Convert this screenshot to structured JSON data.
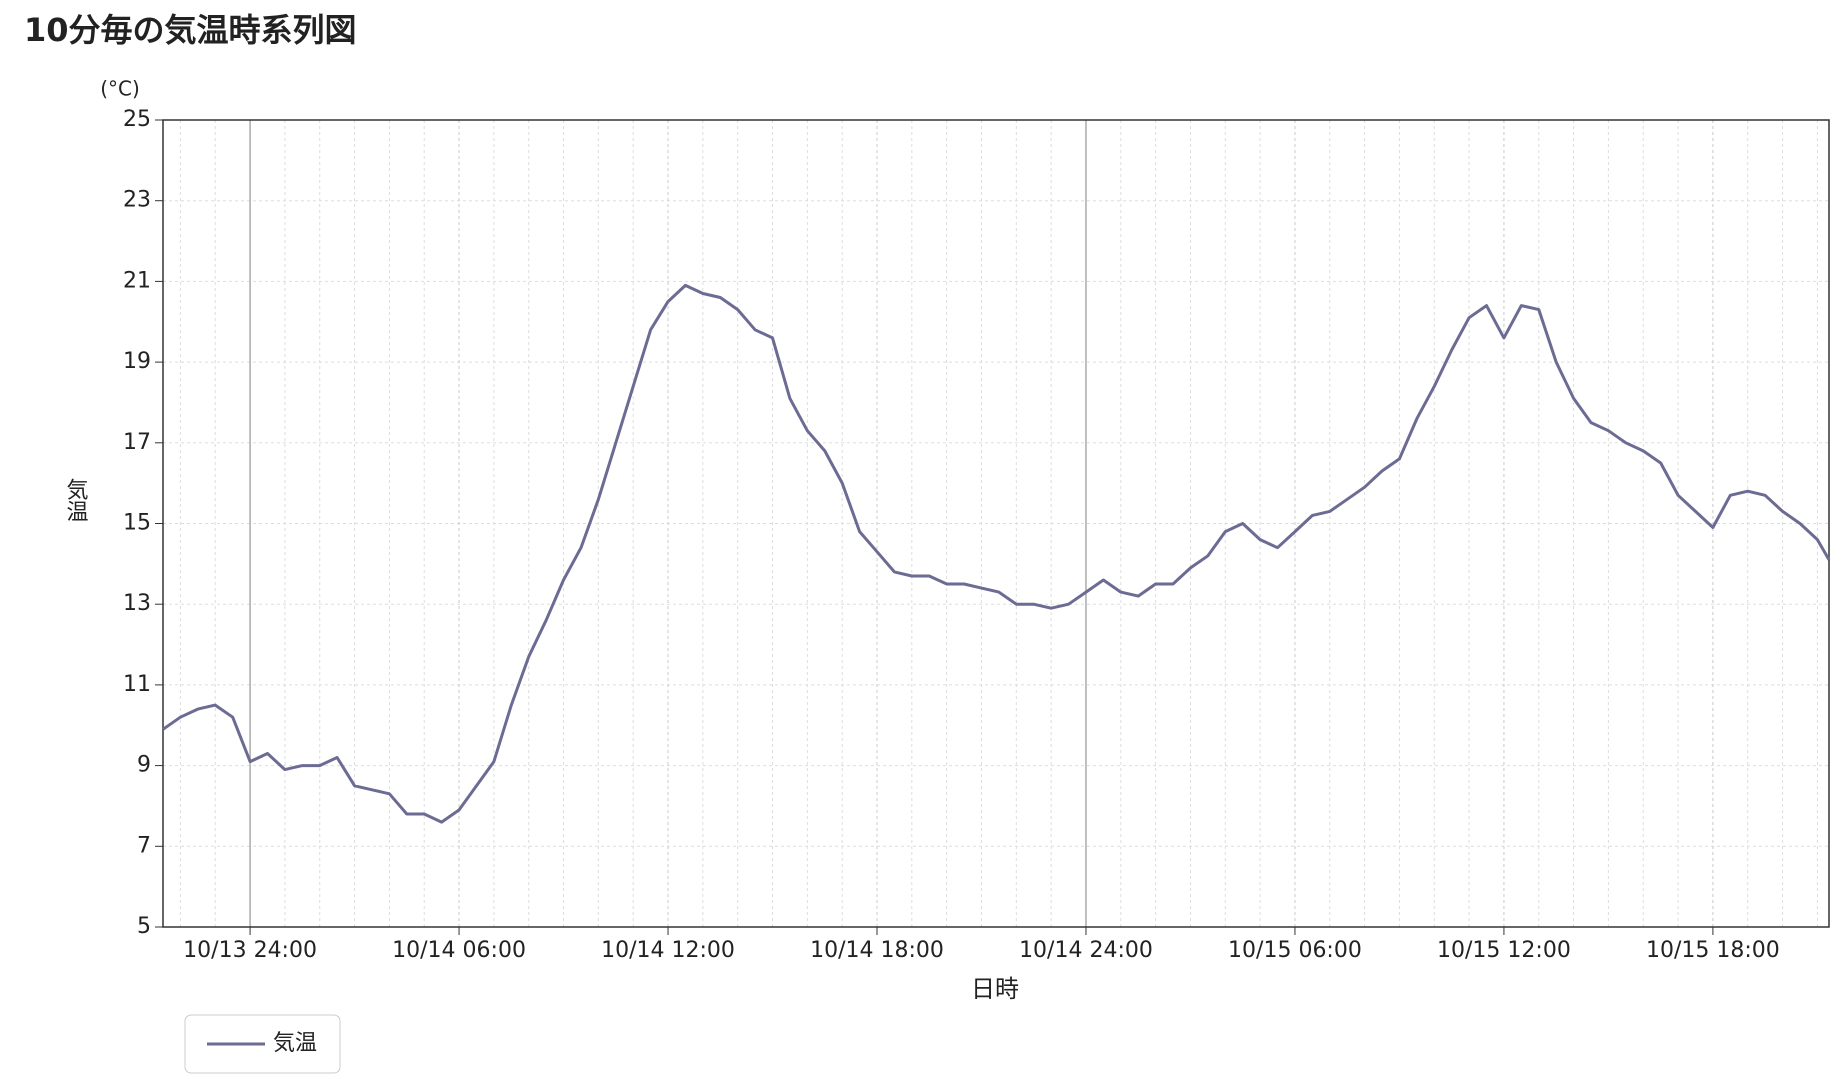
{
  "chart_data": {
    "type": "line",
    "title": "10分毎の気温時系列図",
    "y_unit": "(°C)",
    "ylabel": "気温",
    "xlabel": "日時",
    "x": [
      "10/13 21:30",
      "10/13 22:00",
      "10/13 22:30",
      "10/13 23:00",
      "10/13 23:30",
      "10/13 24:00",
      "10/14 00:30",
      "10/14 01:00",
      "10/14 01:30",
      "10/14 02:00",
      "10/14 02:30",
      "10/14 03:00",
      "10/14 03:30",
      "10/14 04:00",
      "10/14 04:30",
      "10/14 05:00",
      "10/14 05:30",
      "10/14 06:00",
      "10/14 06:30",
      "10/14 07:00",
      "10/14 07:30",
      "10/14 08:00",
      "10/14 08:30",
      "10/14 09:00",
      "10/14 09:30",
      "10/14 10:00",
      "10/14 10:30",
      "10/14 11:00",
      "10/14 11:30",
      "10/14 12:00",
      "10/14 12:30",
      "10/14 13:00",
      "10/14 13:30",
      "10/14 14:00",
      "10/14 14:30",
      "10/14 15:00",
      "10/14 15:30",
      "10/14 16:00",
      "10/14 16:30",
      "10/14 17:00",
      "10/14 17:30",
      "10/14 18:00",
      "10/14 18:30",
      "10/14 19:00",
      "10/14 19:30",
      "10/14 20:00",
      "10/14 20:30",
      "10/14 21:00",
      "10/14 21:30",
      "10/14 22:00",
      "10/14 22:30",
      "10/14 23:00",
      "10/14 23:30",
      "10/14 24:00",
      "10/15 00:30",
      "10/15 01:00",
      "10/15 01:30",
      "10/15 02:00",
      "10/15 02:30",
      "10/15 03:00",
      "10/15 03:30",
      "10/15 04:00",
      "10/15 04:30",
      "10/15 05:00",
      "10/15 05:30",
      "10/15 06:00",
      "10/15 06:30",
      "10/15 07:00",
      "10/15 07:30",
      "10/15 08:00",
      "10/15 08:30",
      "10/15 09:00",
      "10/15 09:30",
      "10/15 10:00",
      "10/15 10:30",
      "10/15 11:00",
      "10/15 11:30",
      "10/15 12:00",
      "10/15 12:30",
      "10/15 13:00",
      "10/15 13:30",
      "10/15 14:00",
      "10/15 14:30",
      "10/15 15:00",
      "10/15 15:30",
      "10/15 16:00",
      "10/15 16:30",
      "10/15 17:00",
      "10/15 17:30",
      "10/15 18:00",
      "10/15 18:30",
      "10/15 19:00",
      "10/15 19:30",
      "10/15 20:00",
      "10/15 20:30",
      "10/15 21:00",
      "10/15 21:20"
    ],
    "series": [
      {
        "name": "気温",
        "color": "#6b6b93",
        "values": [
          9.9,
          10.2,
          10.4,
          10.5,
          10.2,
          9.1,
          9.3,
          8.9,
          9.0,
          9.0,
          9.2,
          8.5,
          8.4,
          8.3,
          7.8,
          7.8,
          7.6,
          7.9,
          8.5,
          9.1,
          10.5,
          11.7,
          12.6,
          13.6,
          14.4,
          15.6,
          17.0,
          18.4,
          19.8,
          20.5,
          20.9,
          20.7,
          20.6,
          20.3,
          19.8,
          19.6,
          18.1,
          17.3,
          16.8,
          16.0,
          14.8,
          14.3,
          13.8,
          13.7,
          13.7,
          13.5,
          13.5,
          13.4,
          13.3,
          13.0,
          13.0,
          12.9,
          13.0,
          13.3,
          13.6,
          13.3,
          13.2,
          13.5,
          13.5,
          13.9,
          14.2,
          14.8,
          15.0,
          14.6,
          14.4,
          14.8,
          15.2,
          15.3,
          15.6,
          15.9,
          16.3,
          16.6,
          17.6,
          18.4,
          19.3,
          20.1,
          20.4,
          19.6,
          20.4,
          20.3,
          19.0,
          18.1,
          17.5,
          17.3,
          17.0,
          16.8,
          16.5,
          15.7,
          15.3,
          14.9,
          15.7,
          15.8,
          15.7,
          15.3,
          15.0,
          14.6,
          14.1
        ]
      }
    ],
    "xlim": [
      "10/13 21:30",
      "10/15 21:20"
    ],
    "xticks": [
      "10/13 24:00",
      "10/14 06:00",
      "10/14 12:00",
      "10/14 18:00",
      "10/14 24:00",
      "10/15 06:00",
      "10/15 12:00",
      "10/15 18:00"
    ],
    "ylim": [
      5,
      25
    ],
    "yticks": [
      5,
      7,
      9,
      11,
      13,
      15,
      17,
      19,
      21,
      23,
      25
    ],
    "grid": true,
    "minor_grid": true,
    "legend": "bottom-left"
  }
}
